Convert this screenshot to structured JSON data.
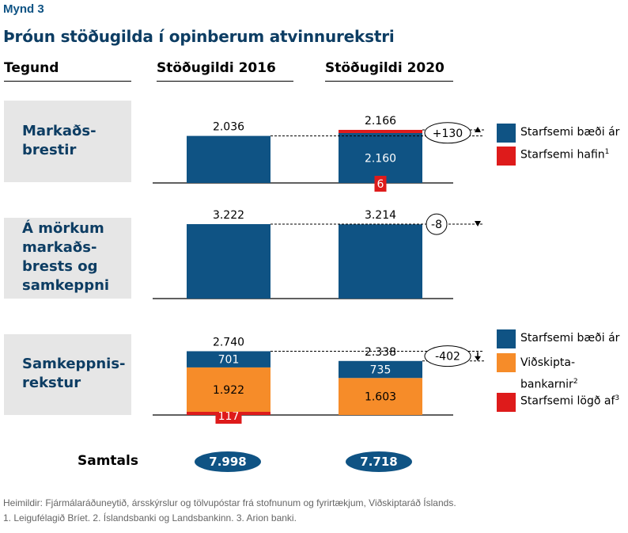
{
  "figure_label": "Mynd 3",
  "title": "Þróun stöðugilda í opinberum atvinnurekstri",
  "columns": {
    "type": "Tegund",
    "y2016": "Stöðugildi 2016",
    "y2020": "Stöðugildi 2020"
  },
  "colors": {
    "blue": "#0f5384",
    "orange": "#f68c29",
    "red": "#de1b1b",
    "category_bg": "#e6e6e6",
    "category_text": "#0d3d63"
  },
  "chart_data": {
    "type": "bar",
    "title": "Þróun stöðugilda í opinberum atvinnurekstri",
    "xlabel": "",
    "ylabel": "Stöðugildi",
    "categories": [
      "Stöðugildi 2016",
      "Stöðugildi 2020"
    ],
    "groups": [
      {
        "name": "Markaðsbrestir",
        "label_lines": [
          "Markaðs-",
          "brestir"
        ],
        "totals": [
          "2.036",
          "2.166"
        ],
        "total_values": [
          2036,
          2166
        ],
        "change": "+130",
        "change_direction": "up",
        "series": [
          {
            "name": "Starfsemi bæði ár",
            "color": "#0f5384",
            "values": [
              2036,
              2160
            ],
            "labels": [
              "",
              "2.160"
            ]
          },
          {
            "name": "Starfsemi hafin",
            "color": "#de1b1b",
            "values": [
              0,
              6
            ],
            "labels": [
              "",
              "6"
            ]
          }
        ],
        "legend": [
          {
            "label": "Starfsemi bæði ár",
            "sup": "",
            "color": "#0f5384"
          },
          {
            "label": "Starfsemi hafin",
            "sup": "1",
            "color": "#de1b1b"
          }
        ]
      },
      {
        "name": "Á mörkum markaðsbrests og samkeppni",
        "label_lines": [
          "Á mörkum",
          "markaðs-",
          "brests og",
          "samkeppni"
        ],
        "totals": [
          "3.222",
          "3.214"
        ],
        "total_values": [
          3222,
          3214
        ],
        "change": "-8",
        "change_direction": "down",
        "series": [
          {
            "name": "Starfsemi bæði ár",
            "color": "#0f5384",
            "values": [
              3222,
              3214
            ],
            "labels": [
              "",
              ""
            ]
          }
        ],
        "legend": []
      },
      {
        "name": "Samkeppnisrekstur",
        "label_lines": [
          "Samkeppnis-",
          "rekstur"
        ],
        "totals": [
          "2.740",
          "2.338"
        ],
        "total_values": [
          2740,
          2338
        ],
        "change": "-402",
        "change_direction": "down",
        "series": [
          {
            "name": "Starfsemi lögð af",
            "color": "#de1b1b",
            "values": [
              117,
              0
            ],
            "labels": [
              "117",
              ""
            ]
          },
          {
            "name": "Viðskiptabankarnir",
            "color": "#f68c29",
            "values": [
              1922,
              1603
            ],
            "labels": [
              "1.922",
              "1.603"
            ]
          },
          {
            "name": "Starfsemi bæði ár",
            "color": "#0f5384",
            "values": [
              701,
              735
            ],
            "labels": [
              "701",
              "735"
            ]
          }
        ],
        "legend": [
          {
            "label": "Starfsemi bæði ár",
            "sup": "",
            "color": "#0f5384"
          },
          {
            "label": "Viðskipta-",
            "label2": "bankarnir",
            "sup": "2",
            "color": "#f68c29"
          },
          {
            "label": "Starfsemi lögð af",
            "sup": "3",
            "color": "#de1b1b"
          }
        ]
      }
    ],
    "grand_totals": {
      "label": "Samtals",
      "values": [
        "7.998",
        "7.718"
      ]
    }
  },
  "footnotes": {
    "sources": "Heimildir: Fjármálaráðuneytið, ársskýrslur og tölvupóstar frá stofnunum og fyrirtækjum, Viðskiptaráð Íslands.",
    "notes": "1. Leigufélagið Bríet. 2. Íslandsbanki og Landsbankinn. 3. Arion banki."
  }
}
